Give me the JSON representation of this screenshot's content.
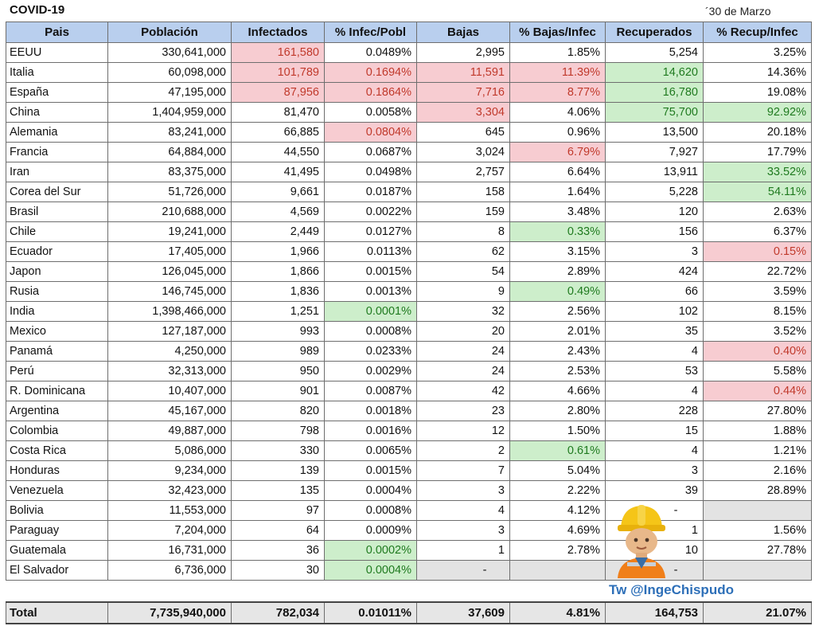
{
  "title": "COVID-19",
  "date": "´30 de Marzo",
  "columns": [
    "Pais",
    "Población",
    "Infectados",
    "% Infec/Pobl",
    "Bajas",
    "% Bajas/Infec",
    "Recuperados",
    "% Recup/Infec"
  ],
  "rows": [
    {
      "pais": "EEUU",
      "poblacion": "330,641,000",
      "infectados": "161,580",
      "infec_pobl": "0.0489%",
      "bajas": "2,995",
      "bajas_infec": "1.85%",
      "recuperados": "5,254",
      "recup_infec": "3.25%"
    },
    {
      "pais": "Italia",
      "poblacion": "60,098,000",
      "infectados": "101,789",
      "infec_pobl": "0.1694%",
      "bajas": "11,591",
      "bajas_infec": "11.39%",
      "recuperados": "14,620",
      "recup_infec": "14.36%"
    },
    {
      "pais": "España",
      "poblacion": "47,195,000",
      "infectados": "87,956",
      "infec_pobl": "0.1864%",
      "bajas": "7,716",
      "bajas_infec": "8.77%",
      "recuperados": "16,780",
      "recup_infec": "19.08%"
    },
    {
      "pais": "China",
      "poblacion": "1,404,959,000",
      "infectados": "81,470",
      "infec_pobl": "0.0058%",
      "bajas": "3,304",
      "bajas_infec": "4.06%",
      "recuperados": "75,700",
      "recup_infec": "92.92%"
    },
    {
      "pais": "Alemania",
      "poblacion": "83,241,000",
      "infectados": "66,885",
      "infec_pobl": "0.0804%",
      "bajas": "645",
      "bajas_infec": "0.96%",
      "recuperados": "13,500",
      "recup_infec": "20.18%"
    },
    {
      "pais": "Francia",
      "poblacion": "64,884,000",
      "infectados": "44,550",
      "infec_pobl": "0.0687%",
      "bajas": "3,024",
      "bajas_infec": "6.79%",
      "recuperados": "7,927",
      "recup_infec": "17.79%"
    },
    {
      "pais": "Iran",
      "poblacion": "83,375,000",
      "infectados": "41,495",
      "infec_pobl": "0.0498%",
      "bajas": "2,757",
      "bajas_infec": "6.64%",
      "recuperados": "13,911",
      "recup_infec": "33.52%"
    },
    {
      "pais": "Corea del Sur",
      "poblacion": "51,726,000",
      "infectados": "9,661",
      "infec_pobl": "0.0187%",
      "bajas": "158",
      "bajas_infec": "1.64%",
      "recuperados": "5,228",
      "recup_infec": "54.11%"
    },
    {
      "pais": "Brasil",
      "poblacion": "210,688,000",
      "infectados": "4,569",
      "infec_pobl": "0.0022%",
      "bajas": "159",
      "bajas_infec": "3.48%",
      "recuperados": "120",
      "recup_infec": "2.63%"
    },
    {
      "pais": "Chile",
      "poblacion": "19,241,000",
      "infectados": "2,449",
      "infec_pobl": "0.0127%",
      "bajas": "8",
      "bajas_infec": "0.33%",
      "recuperados": "156",
      "recup_infec": "6.37%"
    },
    {
      "pais": "Ecuador",
      "poblacion": "17,405,000",
      "infectados": "1,966",
      "infec_pobl": "0.0113%",
      "bajas": "62",
      "bajas_infec": "3.15%",
      "recuperados": "3",
      "recup_infec": "0.15%"
    },
    {
      "pais": "Japon",
      "poblacion": "126,045,000",
      "infectados": "1,866",
      "infec_pobl": "0.0015%",
      "bajas": "54",
      "bajas_infec": "2.89%",
      "recuperados": "424",
      "recup_infec": "22.72%"
    },
    {
      "pais": "Rusia",
      "poblacion": "146,745,000",
      "infectados": "1,836",
      "infec_pobl": "0.0013%",
      "bajas": "9",
      "bajas_infec": "0.49%",
      "recuperados": "66",
      "recup_infec": "3.59%"
    },
    {
      "pais": "India",
      "poblacion": "1,398,466,000",
      "infectados": "1,251",
      "infec_pobl": "0.0001%",
      "bajas": "32",
      "bajas_infec": "2.56%",
      "recuperados": "102",
      "recup_infec": "8.15%"
    },
    {
      "pais": "Mexico",
      "poblacion": "127,187,000",
      "infectados": "993",
      "infec_pobl": "0.0008%",
      "bajas": "20",
      "bajas_infec": "2.01%",
      "recuperados": "35",
      "recup_infec": "3.52%"
    },
    {
      "pais": "Panamá",
      "poblacion": "4,250,000",
      "infectados": "989",
      "infec_pobl": "0.0233%",
      "bajas": "24",
      "bajas_infec": "2.43%",
      "recuperados": "4",
      "recup_infec": "0.40%"
    },
    {
      "pais": "Perú",
      "poblacion": "32,313,000",
      "infectados": "950",
      "infec_pobl": "0.0029%",
      "bajas": "24",
      "bajas_infec": "2.53%",
      "recuperados": "53",
      "recup_infec": "5.58%"
    },
    {
      "pais": "R. Dominicana",
      "poblacion": "10,407,000",
      "infectados": "901",
      "infec_pobl": "0.0087%",
      "bajas": "42",
      "bajas_infec": "4.66%",
      "recuperados": "4",
      "recup_infec": "0.44%"
    },
    {
      "pais": "Argentina",
      "poblacion": "45,167,000",
      "infectados": "820",
      "infec_pobl": "0.0018%",
      "bajas": "23",
      "bajas_infec": "2.80%",
      "recuperados": "228",
      "recup_infec": "27.80%"
    },
    {
      "pais": "Colombia",
      "poblacion": "49,887,000",
      "infectados": "798",
      "infec_pobl": "0.0016%",
      "bajas": "12",
      "bajas_infec": "1.50%",
      "recuperados": "15",
      "recup_infec": "1.88%"
    },
    {
      "pais": "Costa Rica",
      "poblacion": "5,086,000",
      "infectados": "330",
      "infec_pobl": "0.0065%",
      "bajas": "2",
      "bajas_infec": "0.61%",
      "recuperados": "4",
      "recup_infec": "1.21%"
    },
    {
      "pais": "Honduras",
      "poblacion": "9,234,000",
      "infectados": "139",
      "infec_pobl": "0.0015%",
      "bajas": "7",
      "bajas_infec": "5.04%",
      "recuperados": "3",
      "recup_infec": "2.16%"
    },
    {
      "pais": "Venezuela",
      "poblacion": "32,423,000",
      "infectados": "135",
      "infec_pobl": "0.0004%",
      "bajas": "3",
      "bajas_infec": "2.22%",
      "recuperados": "39",
      "recup_infec": "28.89%"
    },
    {
      "pais": "Bolivia",
      "poblacion": "11,553,000",
      "infectados": "97",
      "infec_pobl": "0.0008%",
      "bajas": "4",
      "bajas_infec": "4.12%",
      "recuperados": "-",
      "recup_infec": ""
    },
    {
      "pais": "Paraguay",
      "poblacion": "7,204,000",
      "infectados": "64",
      "infec_pobl": "0.0009%",
      "bajas": "3",
      "bajas_infec": "4.69%",
      "recuperados": "1",
      "recup_infec": "1.56%"
    },
    {
      "pais": "Guatemala",
      "poblacion": "16,731,000",
      "infectados": "36",
      "infec_pobl": "0.0002%",
      "bajas": "1",
      "bajas_infec": "2.78%",
      "recuperados": "10",
      "recup_infec": "27.78%"
    },
    {
      "pais": "El Salvador",
      "poblacion": "6,736,000",
      "infectados": "30",
      "infec_pobl": "0.0004%",
      "bajas": "-",
      "bajas_infec": "",
      "recuperados": "-",
      "recup_infec": ""
    }
  ],
  "highlights": {
    "red": [
      [
        0,
        2
      ],
      [
        1,
        2
      ],
      [
        1,
        3
      ],
      [
        1,
        4
      ],
      [
        1,
        5
      ],
      [
        2,
        2
      ],
      [
        2,
        3
      ],
      [
        2,
        4
      ],
      [
        2,
        5
      ],
      [
        3,
        4
      ],
      [
        4,
        3
      ],
      [
        5,
        5
      ],
      [
        10,
        7
      ],
      [
        15,
        7
      ],
      [
        17,
        7
      ]
    ],
    "green": [
      [
        1,
        6
      ],
      [
        2,
        6
      ],
      [
        3,
        6
      ],
      [
        3,
        7
      ],
      [
        6,
        7
      ],
      [
        7,
        7
      ],
      [
        9,
        5
      ],
      [
        12,
        5
      ],
      [
        13,
        3
      ],
      [
        20,
        5
      ],
      [
        25,
        3
      ],
      [
        26,
        3
      ]
    ],
    "gray": [
      [
        23,
        7
      ],
      [
        26,
        4
      ],
      [
        26,
        5
      ],
      [
        26,
        6
      ],
      [
        26,
        7
      ]
    ]
  },
  "colors": {
    "header_bg": "#b9cfee",
    "red_bg": "#f7ccd1",
    "red_text": "#c0392b",
    "green_bg": "#cdeecb",
    "green_text": "#1f7a1f",
    "total_bg": "#e6e6e6",
    "credit": "#2d6fb8"
  },
  "total": {
    "label": "Total",
    "poblacion": "7,735,940,000",
    "infectados": "782,034",
    "infec_pobl": "0.01011%",
    "bajas": "37,609",
    "bajas_infec": "4.81%",
    "recuperados": "164,753",
    "recup_infec": "21.07%"
  },
  "credit": "Tw @IngeChispudo",
  "avatar_icon": "construction-worker-icon"
}
